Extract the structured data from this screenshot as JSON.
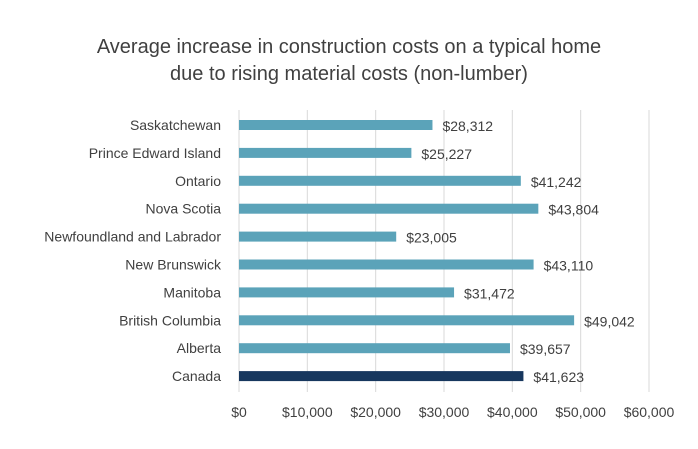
{
  "chart_data": {
    "type": "bar",
    "orientation": "horizontal",
    "title_lines": [
      "Average increase in construction costs on a typical home",
      "due to rising material costs (non-lumber)"
    ],
    "categories": [
      "Saskatchewan",
      "Prince Edward Island",
      "Ontario",
      "Nova Scotia",
      "Newfoundland and Labrador",
      "New Brunswick",
      "Manitoba",
      "British Columbia",
      "Alberta",
      "Canada"
    ],
    "values": [
      28312,
      25227,
      41242,
      43804,
      23005,
      43110,
      31472,
      49042,
      39657,
      41623
    ],
    "value_labels": [
      "$28,312",
      "$25,227",
      "$41,242",
      "$43,804",
      "$23,005",
      "$43,110",
      "$31,472",
      "$49,042",
      "$39,657",
      "$41,623"
    ],
    "highlight_category": "Canada",
    "colors": {
      "default": "#5BA3B9",
      "highlight": "#17375E",
      "grid": "#D9D9D9"
    },
    "xlim": [
      0,
      60000
    ],
    "xticks": [
      0,
      10000,
      20000,
      30000,
      40000,
      50000,
      60000
    ],
    "xtick_labels": [
      "$0",
      "$10,000",
      "$20,000",
      "$30,000",
      "$40,000",
      "$50,000",
      "$60,000"
    ],
    "xlabel": "",
    "ylabel": "",
    "grid": "vertical",
    "legend": "none"
  }
}
